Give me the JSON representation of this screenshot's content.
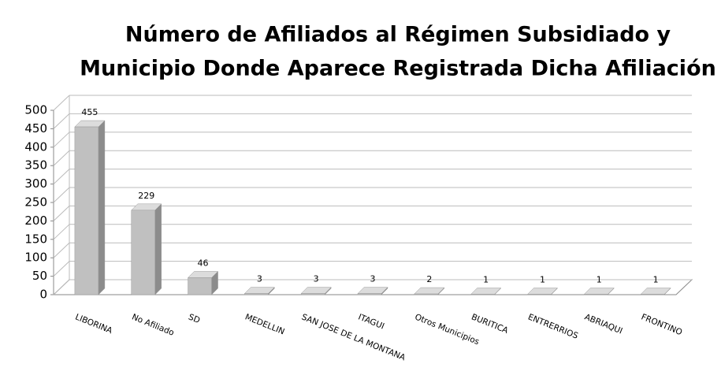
{
  "chart_data": {
    "type": "bar3d",
    "title": [
      "Número de Afiliados al Régimen Subsidiado y",
      "Municipio Donde Aparece Registrada Dicha Afiliación"
    ],
    "categories": [
      "LIBORINA",
      "No Afiliado",
      "SD",
      "MEDELLIN",
      "SAN JOSE DE LA MONTANA",
      "ITAGUI",
      "Otros Municipios",
      "BURITICA",
      "ENTRERRIOS",
      "ABRIAQUI",
      "FRONTINO"
    ],
    "values": [
      455,
      229,
      46,
      3,
      3,
      3,
      2,
      1,
      1,
      1,
      1
    ],
    "color": "#c0c0c0",
    "ylim": [
      0,
      500
    ],
    "yticks": [
      0,
      50,
      100,
      150,
      200,
      250,
      300,
      350,
      400,
      450,
      500
    ],
    "grid": true
  }
}
